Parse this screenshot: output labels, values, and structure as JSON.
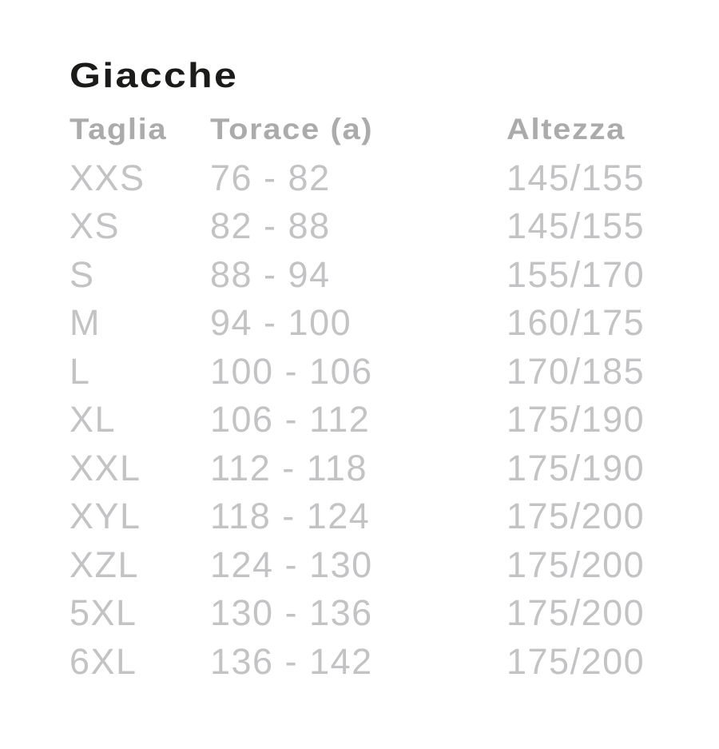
{
  "title": "Giacche",
  "table": {
    "headers": {
      "taglia": "Taglia",
      "torace": "Torace (a)",
      "altezza": "Altezza"
    },
    "rows": [
      {
        "taglia": "XXS",
        "torace": "76 - 82",
        "altezza": "145/155"
      },
      {
        "taglia": "XS",
        "torace": "82 - 88",
        "altezza": "145/155"
      },
      {
        "taglia": "S",
        "torace": "88 - 94",
        "altezza": "155/170"
      },
      {
        "taglia": "M",
        "torace": "94 - 100",
        "altezza": "160/175"
      },
      {
        "taglia": "L",
        "torace": "100 - 106",
        "altezza": "170/185"
      },
      {
        "taglia": "XL",
        "torace": "106 - 112",
        "altezza": "175/190"
      },
      {
        "taglia": "XXL",
        "torace": "112 - 118",
        "altezza": "175/190"
      },
      {
        "taglia": "XYL",
        "torace": "118 - 124",
        "altezza": "175/200"
      },
      {
        "taglia": "XZL",
        "torace": "124 - 130",
        "altezza": "175/200"
      },
      {
        "taglia": "5XL",
        "torace": "130 - 136",
        "altezza": "175/200"
      },
      {
        "taglia": "6XL",
        "torace": "136 - 142",
        "altezza": "175/200"
      }
    ]
  },
  "chart_data": {
    "type": "table",
    "title": "Giacche",
    "columns": [
      "Taglia",
      "Torace (a)",
      "Altezza"
    ],
    "rows": [
      [
        "XXS",
        "76 - 82",
        "145/155"
      ],
      [
        "XS",
        "82 - 88",
        "145/155"
      ],
      [
        "S",
        "88 - 94",
        "155/170"
      ],
      [
        "M",
        "94 - 100",
        "160/175"
      ],
      [
        "L",
        "100 - 106",
        "170/185"
      ],
      [
        "XL",
        "106 - 112",
        "175/190"
      ],
      [
        "XXL",
        "112 - 118",
        "175/190"
      ],
      [
        "XYL",
        "118 - 124",
        "175/200"
      ],
      [
        "XZL",
        "124 - 130",
        "175/200"
      ],
      [
        "5XL",
        "130 - 136",
        "175/200"
      ],
      [
        "6XL",
        "136 - 142",
        "175/200"
      ]
    ]
  },
  "colors": {
    "background": "#ffffff",
    "title_text": "#1b1b19",
    "header_text": "#ababab",
    "data_text": "#c3c3c5"
  }
}
